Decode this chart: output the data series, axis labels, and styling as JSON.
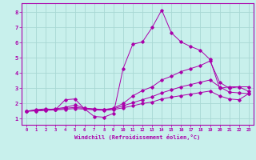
{
  "bg_color": "#c8f0ec",
  "line_color": "#aa00aa",
  "grid_color": "#a8d8d4",
  "xlabel": "Windchill (Refroidissement éolien,°C)",
  "xlabel_color": "#aa00aa",
  "tick_color": "#aa00aa",
  "xlim": [
    -0.5,
    23.5
  ],
  "ylim": [
    0.6,
    8.6
  ],
  "xticks": [
    0,
    1,
    2,
    3,
    4,
    5,
    6,
    7,
    8,
    9,
    10,
    11,
    12,
    13,
    14,
    15,
    16,
    17,
    18,
    19,
    20,
    21,
    22,
    23
  ],
  "yticks": [
    1,
    2,
    3,
    4,
    5,
    6,
    7,
    8
  ],
  "series": [
    {
      "x": [
        0,
        1,
        2,
        3,
        4,
        5,
        6,
        7,
        8,
        9,
        10,
        11,
        12,
        13,
        14,
        15,
        16,
        17,
        18,
        19,
        20,
        21,
        22,
        23
      ],
      "y": [
        1.5,
        1.6,
        1.65,
        1.6,
        2.25,
        2.3,
        1.65,
        1.15,
        1.1,
        1.35,
        4.3,
        5.9,
        6.05,
        7.0,
        8.15,
        6.65,
        6.05,
        5.75,
        5.5,
        4.9,
        3.0,
        3.1,
        3.1,
        2.8
      ]
    },
    {
      "x": [
        0,
        1,
        2,
        3,
        4,
        5,
        6,
        7,
        8,
        9,
        10,
        11,
        12,
        13,
        14,
        15,
        16,
        17,
        18,
        19,
        20,
        21,
        22,
        23
      ],
      "y": [
        1.5,
        1.55,
        1.6,
        1.65,
        1.75,
        1.9,
        1.7,
        1.65,
        1.6,
        1.7,
        2.0,
        2.5,
        2.85,
        3.1,
        3.55,
        3.8,
        4.1,
        4.3,
        4.5,
        4.8,
        3.4,
        3.0,
        3.1,
        3.1
      ]
    },
    {
      "x": [
        0,
        1,
        2,
        3,
        4,
        5,
        6,
        7,
        8,
        9,
        10,
        11,
        12,
        13,
        14,
        15,
        16,
        17,
        18,
        19,
        20,
        21,
        22,
        23
      ],
      "y": [
        1.5,
        1.52,
        1.57,
        1.62,
        1.68,
        1.75,
        1.68,
        1.62,
        1.6,
        1.65,
        1.85,
        2.05,
        2.25,
        2.45,
        2.7,
        2.9,
        3.1,
        3.25,
        3.4,
        3.55,
        3.1,
        2.75,
        2.7,
        2.65
      ]
    },
    {
      "x": [
        0,
        1,
        2,
        3,
        4,
        5,
        6,
        7,
        8,
        9,
        10,
        11,
        12,
        13,
        14,
        15,
        16,
        17,
        18,
        19,
        20,
        21,
        22,
        23
      ],
      "y": [
        1.5,
        1.52,
        1.55,
        1.58,
        1.62,
        1.67,
        1.63,
        1.58,
        1.55,
        1.6,
        1.72,
        1.85,
        2.0,
        2.1,
        2.3,
        2.42,
        2.52,
        2.62,
        2.72,
        2.82,
        2.5,
        2.3,
        2.25,
        2.65
      ]
    }
  ]
}
